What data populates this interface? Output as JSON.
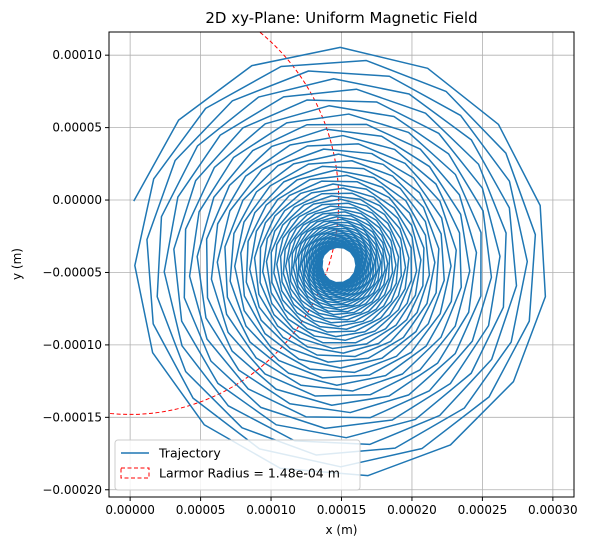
{
  "chart_data": {
    "type": "line",
    "title": "2D xy-Plane: Uniform Magnetic Field",
    "xlabel": "x (m)",
    "ylabel": "y (m)",
    "xlim": [
      -1.5e-05,
      0.000315
    ],
    "ylim": [
      -0.000205,
      0.000116
    ],
    "grid": true,
    "legend_position": "lower-left",
    "x_ticks": [
      0.0,
      5e-05,
      0.0001,
      0.00015,
      0.0002,
      0.00025,
      0.0003
    ],
    "x_tick_labels": [
      "0.00000",
      "0.00005",
      "0.00010",
      "0.00015",
      "0.00020",
      "0.00025",
      "0.00030"
    ],
    "y_ticks": [
      0.0001,
      5e-05,
      0.0,
      -5e-05,
      -0.0001,
      -0.00015,
      -0.0002
    ],
    "y_tick_labels": [
      "0.00010",
      "0.00005",
      "0.00000",
      "−0.00005",
      "−0.00010",
      "−0.00015",
      "−0.00020"
    ],
    "series": [
      {
        "name": "Trajectory",
        "color": "#1f77b4",
        "style": "solid",
        "spiral": {
          "center": [
            0.000148,
            -4.5e-05
          ],
          "outer_radius": 0.000152,
          "inner_radius": 1.2e-05,
          "start_point": [
            0.0,
            0.0
          ],
          "step_angle_deg": 24.5,
          "steps": 720,
          "rotation": "clockwise"
        }
      },
      {
        "name": "Larmor Radius = 1.48e-04 m",
        "color": "#ff0000",
        "style": "dashed",
        "circle": {
          "center": [
            0.0,
            0.0
          ],
          "radius": 0.000148
        }
      }
    ]
  }
}
